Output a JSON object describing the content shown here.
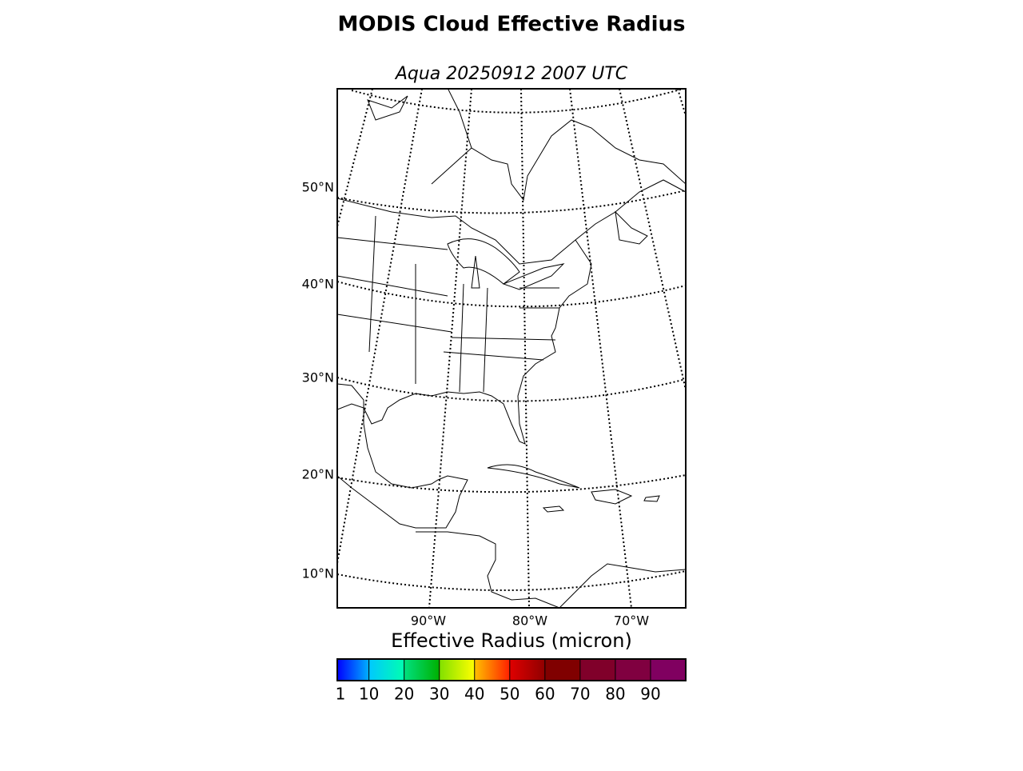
{
  "title": "MODIS Cloud Effective Radius",
  "subtitle": "Aqua 20250912 2007 UTC",
  "map": {
    "lat_labels": [
      "50°N",
      "40°N",
      "30°N",
      "20°N",
      "10°N"
    ],
    "lon_labels": [
      "90°W",
      "80°W",
      "70°W"
    ]
  },
  "colorbar": {
    "label": "Effective Radius (micron)",
    "lim": [
      1,
      100
    ],
    "ticks": [
      1,
      10,
      20,
      30,
      40,
      50,
      60,
      70,
      80,
      90
    ],
    "colors": [
      [
        "#0000ff",
        "#00b0ff"
      ],
      [
        "#00c8ff",
        "#00ffb0"
      ],
      [
        "#00e080",
        "#00b000"
      ],
      [
        "#80e000",
        "#ffff00"
      ],
      [
        "#ffc000",
        "#ff2000"
      ],
      [
        "#e00000",
        "#900000"
      ],
      [
        "#800000",
        "#800000"
      ],
      [
        "#80002a",
        "#80002a"
      ],
      [
        "#800040",
        "#800040"
      ],
      [
        "#800060",
        "#800060"
      ],
      [
        "#800080",
        "#800080"
      ]
    ]
  }
}
